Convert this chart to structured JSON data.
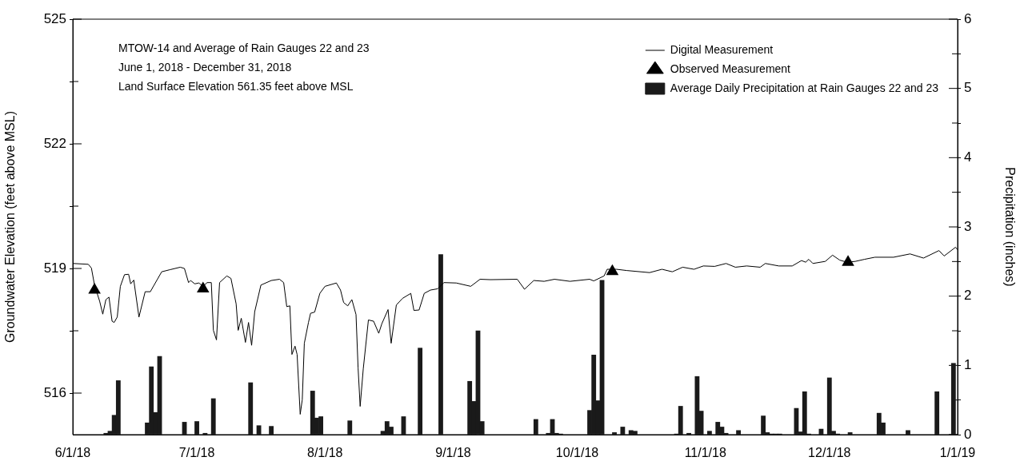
{
  "chart_data": {
    "type": "line",
    "ylabel": "Groundwater Elevation (feet above MSL)",
    "y2label": "Precipitation (inches)",
    "annotations": [
      "MTOW-14 and Average of Rain Gauges 22 and 23",
      "June 1, 2018 - December 31, 2018",
      "Land Surface Elevation 561.35 feet above MSL"
    ],
    "xlim": [
      "2018-06-01",
      "2019-01-01"
    ],
    "xticks": [
      {
        "value": "2018-06-01",
        "label": "6/1/18"
      },
      {
        "value": "2018-07-01",
        "label": "7/1/18"
      },
      {
        "value": "2018-08-01",
        "label": "8/1/18"
      },
      {
        "value": "2018-09-01",
        "label": "9/1/18"
      },
      {
        "value": "2018-10-01",
        "label": "10/1/18"
      },
      {
        "value": "2018-11-01",
        "label": "11/1/18"
      },
      {
        "value": "2018-12-01",
        "label": "12/1/18"
      },
      {
        "value": "2019-01-01",
        "label": "1/1/19"
      }
    ],
    "ylim": [
      515,
      525
    ],
    "yticks": [
      516,
      {
        "value": 517.5,
        "label": null
      },
      519,
      {
        "value": 520.5,
        "label": null
      },
      522,
      {
        "value": 523.5,
        "label": null
      },
      525
    ],
    "y2lim": [
      0,
      6
    ],
    "y2ticks": [
      0,
      {
        "value": 0.5,
        "label": null
      },
      1,
      {
        "value": 1.5,
        "label": null
      },
      2,
      {
        "value": 2.5,
        "label": null
      },
      3,
      {
        "value": 3.5,
        "label": null
      },
      4,
      {
        "value": 4.5,
        "label": null
      },
      5,
      {
        "value": 5.5,
        "label": null
      },
      6
    ],
    "legend": "top right",
    "series": [
      {
        "name": "Digital Measurement",
        "color": "#000000",
        "marker": "none",
        "x": [
          "2018-06-01T00:00",
          "2018-06-04T18:00",
          "2018-06-05T12:00",
          "2018-06-06T06:00",
          "2018-06-07T12:00",
          "2018-06-08T06:00",
          "2018-06-09T00:00",
          "2018-06-09T18:00",
          "2018-06-10T12:00",
          "2018-06-11T00:00",
          "2018-06-11T18:00",
          "2018-06-12T12:00",
          "2018-06-13T12:00",
          "2018-06-14T12:00",
          "2018-06-15T00:00",
          "2018-06-15T18:00",
          "2018-06-17T00:00",
          "2018-06-18T12:00",
          "2018-06-19T18:00",
          "2018-06-22T12:00",
          "2018-06-24T12:00",
          "2018-06-27T00:00",
          "2018-06-28T00:00",
          "2018-06-29T00:00",
          "2018-06-29T12:00",
          "2018-06-30T12:00",
          "2018-07-01T12:00",
          "2018-07-02T12:00",
          "2018-07-03T12:00",
          "2018-07-04T12:00",
          "2018-07-05T00:00",
          "2018-07-05T18:00",
          "2018-07-06T12:00",
          "2018-07-08T06:00",
          "2018-07-09T06:00",
          "2018-07-10T12:00",
          "2018-07-11T00:00",
          "2018-07-11T18:00",
          "2018-07-12T18:00",
          "2018-07-13T12:00",
          "2018-07-14T06:00",
          "2018-07-15T00:00",
          "2018-07-16T12:00",
          "2018-07-19T00:00",
          "2018-07-21T00:00",
          "2018-07-22T00:00",
          "2018-07-22T18:00",
          "2018-07-23T12:00",
          "2018-07-24T00:00",
          "2018-07-24T18:00",
          "2018-07-25T06:00",
          "2018-07-26T00:00",
          "2018-07-26T12:00",
          "2018-07-27T00:00",
          "2018-07-28T00:00",
          "2018-07-28T12:00",
          "2018-07-29T12:00",
          "2018-07-30T18:00",
          "2018-08-01T00:00",
          "2018-08-03T18:00",
          "2018-08-04T18:00",
          "2018-08-05T12:00",
          "2018-08-06T12:00",
          "2018-08-07T12:00",
          "2018-08-08T12:00",
          "2018-08-09T00:00",
          "2018-08-09T12:00",
          "2018-08-10T06:00",
          "2018-08-11T12:00",
          "2018-08-12T18:00",
          "2018-08-14T00:00",
          "2018-08-14T18:00",
          "2018-08-16T06:00",
          "2018-08-17T00:00",
          "2018-08-18T06:00",
          "2018-08-19T18:00",
          "2018-08-21T18:00",
          "2018-08-22T12:00",
          "2018-08-23T18:00",
          "2018-08-25T00:00",
          "2018-08-26T12:00",
          "2018-08-28T06:00",
          "2018-08-29T18:00",
          "2018-09-01T18:00",
          "2018-09-05T06:00",
          "2018-09-07T12:00",
          "2018-09-10T00:00",
          "2018-09-16T12:00",
          "2018-09-18T06:00",
          "2018-09-20T12:00",
          "2018-09-23T00:00",
          "2018-09-25T12:00",
          "2018-09-29T06:00",
          "2018-10-04T00:00",
          "2018-10-05T00:00",
          "2018-10-07T12:00",
          "2018-10-08T06:00",
          "2018-10-10T12:00",
          "2018-10-13T00:00",
          "2018-10-18T12:00",
          "2018-10-21T12:00",
          "2018-10-24T00:00",
          "2018-10-26T12:00",
          "2018-10-29T06:00",
          "2018-10-31T12:00",
          "2018-11-03T06:00",
          "2018-11-06T00:00",
          "2018-11-08T06:00",
          "2018-11-11T00:00",
          "2018-11-14T06:00",
          "2018-11-15T12:00",
          "2018-11-18T18:00",
          "2018-11-22T00:00",
          "2018-11-24T06:00",
          "2018-11-25T06:00",
          "2018-11-26T00:00",
          "2018-11-27T00:00",
          "2018-11-30T00:00",
          "2018-12-01T18:00",
          "2018-12-03T12:00",
          "2018-12-05T06:00",
          "2018-12-07T06:00",
          "2018-12-09T12:00",
          "2018-12-12T00:00",
          "2018-12-16T12:00",
          "2018-12-20T12:00",
          "2018-12-23T18:00",
          "2018-12-27T12:00",
          "2018-12-28T18:00",
          "2018-12-31T12:00",
          "2019-01-01T00:00"
        ],
        "values": [
          519.12,
          519.1,
          519.01,
          518.6,
          518.21,
          517.9,
          518.25,
          518.31,
          517.73,
          517.7,
          517.83,
          518.57,
          518.85,
          518.86,
          518.63,
          518.72,
          517.83,
          518.44,
          518.44,
          518.92,
          518.97,
          519.03,
          519.0,
          518.66,
          518.71,
          518.63,
          518.65,
          518.57,
          518.66,
          518.66,
          517.51,
          517.28,
          518.66,
          518.82,
          518.76,
          518.15,
          517.51,
          517.8,
          517.22,
          517.7,
          517.15,
          517.96,
          518.6,
          518.71,
          518.74,
          518.66,
          518.08,
          518.1,
          516.93,
          517.13,
          516.93,
          515.49,
          515.84,
          517.2,
          517.7,
          517.92,
          517.95,
          518.4,
          518.57,
          518.65,
          518.48,
          518.18,
          518.1,
          518.25,
          517.89,
          516.61,
          515.68,
          516.58,
          517.76,
          517.73,
          517.44,
          517.67,
          518.01,
          517.2,
          518.12,
          518.28,
          518.4,
          517.99,
          518.0,
          518.4,
          518.48,
          518.51,
          518.66,
          518.65,
          518.57,
          518.74,
          518.73,
          518.74,
          518.5,
          518.71,
          518.69,
          518.74,
          518.69,
          518.74,
          518.7,
          518.82,
          518.98,
          518.98,
          518.95,
          518.9,
          518.98,
          518.92,
          519.03,
          518.98,
          519.06,
          519.05,
          519.12,
          519.03,
          519.06,
          519.03,
          519.12,
          519.06,
          519.06,
          519.19,
          519.15,
          519.22,
          519.12,
          519.17,
          519.32,
          519.2,
          519.15,
          519.17,
          519.22,
          519.27,
          519.27,
          519.35,
          519.25,
          519.43,
          519.3,
          519.51,
          519.45
        ]
      },
      {
        "name": "Observed Measurement",
        "type": "scatter",
        "color": "#000000",
        "marker": "triangle",
        "x": [
          "2018-06-06T06:00",
          "2018-07-02T12:00",
          "2018-10-09T12:00",
          "2018-12-05T12:00"
        ],
        "values": [
          518.48,
          518.51,
          518.93,
          519.15
        ]
      },
      {
        "name": "Average Daily Precipitation at Rain Gauges 22 and 23",
        "type": "bar",
        "axis": "y2",
        "color": "#1a1a1a",
        "x": [
          "2018-06-09",
          "2018-06-10",
          "2018-06-11",
          "2018-06-12",
          "2018-06-19",
          "2018-06-20",
          "2018-06-21",
          "2018-06-22",
          "2018-06-28",
          "2018-07-01",
          "2018-07-03",
          "2018-07-05",
          "2018-07-14",
          "2018-07-16",
          "2018-07-19",
          "2018-07-29",
          "2018-07-30",
          "2018-07-31",
          "2018-08-07",
          "2018-08-15",
          "2018-08-16",
          "2018-08-17",
          "2018-08-20",
          "2018-08-24",
          "2018-08-29",
          "2018-09-05",
          "2018-09-06",
          "2018-09-07",
          "2018-09-08",
          "2018-09-21",
          "2018-09-24",
          "2018-09-25",
          "2018-09-26",
          "2018-09-27",
          "2018-10-04",
          "2018-10-05",
          "2018-10-06",
          "2018-10-07",
          "2018-10-10",
          "2018-10-12",
          "2018-10-14",
          "2018-10-15",
          "2018-10-25",
          "2018-10-26",
          "2018-10-28",
          "2018-10-30",
          "2018-10-31",
          "2018-11-02",
          "2018-11-04",
          "2018-11-05",
          "2018-11-06",
          "2018-11-09",
          "2018-11-15",
          "2018-11-16",
          "2018-11-17",
          "2018-11-18",
          "2018-11-19",
          "2018-11-23",
          "2018-11-24",
          "2018-11-25",
          "2018-11-26",
          "2018-11-29",
          "2018-12-01",
          "2018-12-02",
          "2018-12-03",
          "2018-12-06",
          "2018-12-13",
          "2018-12-14",
          "2018-12-20",
          "2018-12-27",
          "2018-12-31"
        ],
        "values": [
          0.02,
          0.05,
          0.28,
          0.78,
          0.17,
          0.98,
          0.32,
          1.13,
          0.18,
          0.19,
          0.02,
          0.52,
          0.75,
          0.13,
          0.12,
          0.63,
          0.24,
          0.26,
          0.2,
          0.05,
          0.19,
          0.11,
          0.26,
          1.25,
          2.6,
          0.77,
          0.48,
          1.5,
          0.19,
          0.22,
          0.02,
          0.22,
          0.02,
          0.01,
          0.35,
          1.15,
          0.49,
          2.23,
          0.03,
          0.11,
          0.06,
          0.05,
          0.01,
          0.41,
          0.02,
          0.84,
          0.34,
          0.05,
          0.18,
          0.11,
          0.02,
          0.06,
          0.27,
          0.03,
          0.01,
          0.01,
          0.01,
          0.38,
          0.04,
          0.62,
          0.01,
          0.08,
          0.82,
          0.05,
          0.01,
          0.03,
          0.31,
          0.17,
          0.06,
          0.62,
          1.03
        ]
      }
    ]
  }
}
